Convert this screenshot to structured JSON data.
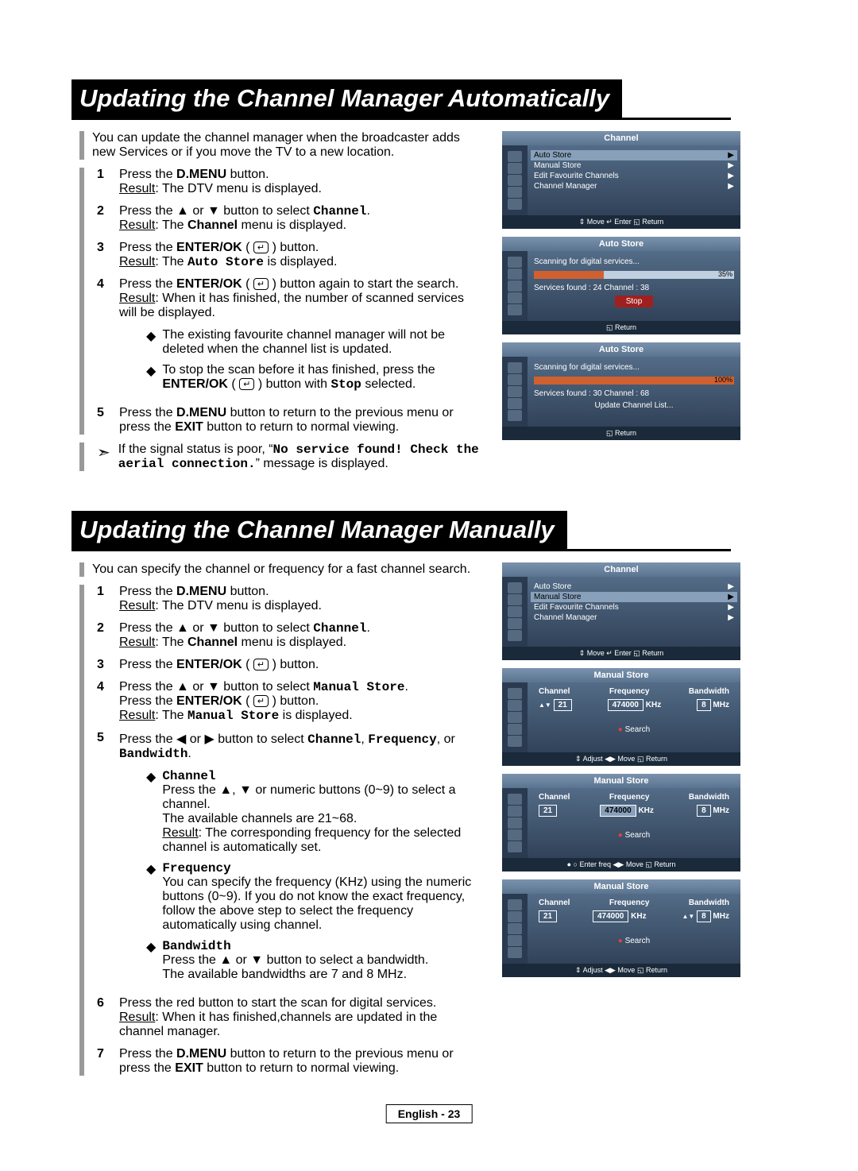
{
  "section1": {
    "title": "Updating the Channel Manager Automatically",
    "intro": "You can update the channel manager when the broadcaster adds new Services or if you move the TV to a new location.",
    "steps": [
      {
        "n": "1",
        "html": "Press the <b>D.MENU</b> button.<br><span class='u'>Result</span>: The DTV menu is displayed."
      },
      {
        "n": "2",
        "html": "Press the ▲ or ▼ button to select <span class='mono'>Channel</span>.<br><span class='u'>Result</span>: The <b>Channel</b> menu is displayed."
      },
      {
        "n": "3",
        "html": "Press the <b>ENTER/OK</b> ( <span class='ebtn'>↵</span> ) button.<br><span class='u'>Result</span>: The <span class='mono'>Auto Store</span> is displayed."
      },
      {
        "n": "4",
        "html": "Press the <b>ENTER/OK</b> ( <span class='ebtn'>↵</span> ) button again to start the search.<br><span class='u'>Result</span>: When it has finished, the number of scanned services will be displayed."
      }
    ],
    "bullets": [
      "The existing favourite channel manager will not be deleted when the channel list is updated.",
      "To stop the scan before it has finished, press the <b>ENTER/OK</b> ( <span class='ebtn'>↵</span> ) button with <span class='mono'>Stop</span> selected."
    ],
    "step5": "Press the <b>D.MENU</b> button to return to the previous menu or press the <b>EXIT</b> button  to return to normal viewing.",
    "note": "If the signal status is poor, “<span class='mono'>No service found! Check the aerial connection.</span>” message is displayed."
  },
  "section2": {
    "title": "Updating the Channel Manager Manually",
    "intro": "You can specify the channel or frequency for a fast channel search.",
    "steps": [
      {
        "n": "1",
        "html": "Press the <b>D.MENU</b> button.<br><span class='u'>Result</span>: The DTV menu is displayed."
      },
      {
        "n": "2",
        "html": "Press the ▲ or ▼ button to select <span class='mono'>Channel</span>.<br><span class='u'>Result</span>: The <b>Channel</b> menu is displayed."
      },
      {
        "n": "3",
        "html": "Press the <b>ENTER/OK</b> ( <span class='ebtn'>↵</span> ) button."
      },
      {
        "n": "4",
        "html": "Press the ▲ or ▼ button to select <span class='mono'>Manual Store</span>.<br>Press the <b>ENTER/OK</b> ( <span class='ebtn'>↵</span> ) button.<br><span class='u'>Result</span>: The <span class='mono'>Manual Store</span> is displayed."
      },
      {
        "n": "5",
        "html": "Press the ◀ or ▶ button to select <span class='mono'>Channel</span>, <span class='mono'>Frequency</span>, or <span class='mono'>Bandwidth</span>."
      }
    ],
    "params": [
      {
        "t": "Channel",
        "body": "Press the ▲, ▼ or numeric buttons (0~9) to select a channel.<br>The available channels are 21~68.<br><span class='u'>Result</span>: The corresponding frequency for the selected channel is automatically set."
      },
      {
        "t": "Frequency",
        "body": "You can specify the frequency (KHz) using the numeric buttons (0~9). If you do not know the exact frequency, follow the above step to select the frequency automatically using channel."
      },
      {
        "t": "Bandwidth",
        "body": "Press the ▲ or ▼ button to select a bandwidth.<br>The available bandwidths are 7 and 8 MHz."
      }
    ],
    "step6": "Press the red button to start the scan for digital services.<br><span class='u'>Result</span>: When it has finished,channels are updated in the channel manager.",
    "step7": "Press the <b>D.MENU</b> button to return to the previous menu or press the <b>EXIT</b> button to return to normal viewing."
  },
  "osd": {
    "channel": {
      "title": "Channel",
      "items": [
        "Auto Store",
        "Manual Store",
        "Edit Favourite Channels",
        "Channel Manager"
      ],
      "sel": 0,
      "foot": "⇕ Move   ↵ Enter   ◱ Return"
    },
    "autostore35": {
      "title": "Auto Store",
      "msg": "Scanning for digital services...",
      "pct": 35,
      "found": "Services found : 24     Channel : 38",
      "btn": "Stop",
      "foot": "◱ Return"
    },
    "autostore100": {
      "title": "Auto Store",
      "msg": "Scanning for digital services...",
      "pct": 100,
      "found": "Services found : 30     Channel : 68",
      "btn": "Update Channel List...",
      "foot": "◱ Return"
    },
    "channel2_sel": 1,
    "manual": {
      "title": "Manual Store",
      "cols": [
        "Channel",
        "Frequency",
        "Bandwidth"
      ],
      "ch": "21",
      "freq": "474000",
      "freq_unit": "KHz",
      "bw": "8",
      "bw_unit": "MHz",
      "search": "Search"
    },
    "m_foot1": "⇕ Adjust  ◀▶ Move  ◱ Return",
    "m_foot2": "● ○ Enter freq  ◀▶ Move ◱ Return",
    "m_foot3": "⇕ Adjust  ◀▶ Move  ◱ Return"
  },
  "pagenum": "English - 23"
}
